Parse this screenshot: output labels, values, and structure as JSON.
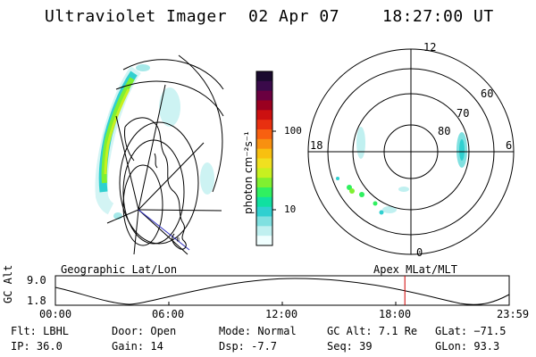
{
  "header": {
    "instrument": "Ultraviolet Imager",
    "date": "02 Apr 07",
    "time": "18:27:00 UT"
  },
  "colorbar": {
    "unit_label": "photon cm⁻²s⁻¹",
    "ticks": [
      "100",
      "10"
    ],
    "colors": [
      "#1a0a2e",
      "#3a0a4a",
      "#6a0040",
      "#9a0020",
      "#cc1010",
      "#e83010",
      "#f86010",
      "#f89010",
      "#f8c010",
      "#f0e020",
      "#c8f020",
      "#80f030",
      "#30f060",
      "#10e0a0",
      "#30d0d0",
      "#80e0e0",
      "#c0f0f0",
      "#f0ffff"
    ]
  },
  "polar": {
    "mlt_labels": [
      "12",
      "18",
      "6",
      "0"
    ],
    "lat_labels": [
      "60",
      "70",
      "80"
    ]
  },
  "panel_labels": {
    "left": "Geographic Lat/Lon",
    "right": "Apex MLat/MLT"
  },
  "altitude_plot": {
    "ylabel": "GC Alt",
    "yticks": [
      "9.0",
      "1.8"
    ],
    "xticks": [
      "00:00",
      "06:00",
      "12:00",
      "18:00",
      "23:59"
    ],
    "current_time_fraction": 0.77,
    "marker_color": "#d00000"
  },
  "footer": {
    "filter": "Flt: LBHL",
    "ip": "IP: 36.0",
    "door": "Door: Open",
    "gain": "Gain: 14",
    "mode": "Mode: Normal",
    "dsp": "Dsp:   -7.7",
    "gc_alt": "GC Alt: 7.1 Re",
    "seq": "Seq: 39",
    "glat": "GLat: −71.5",
    "glon": "GLon:  93.3"
  }
}
